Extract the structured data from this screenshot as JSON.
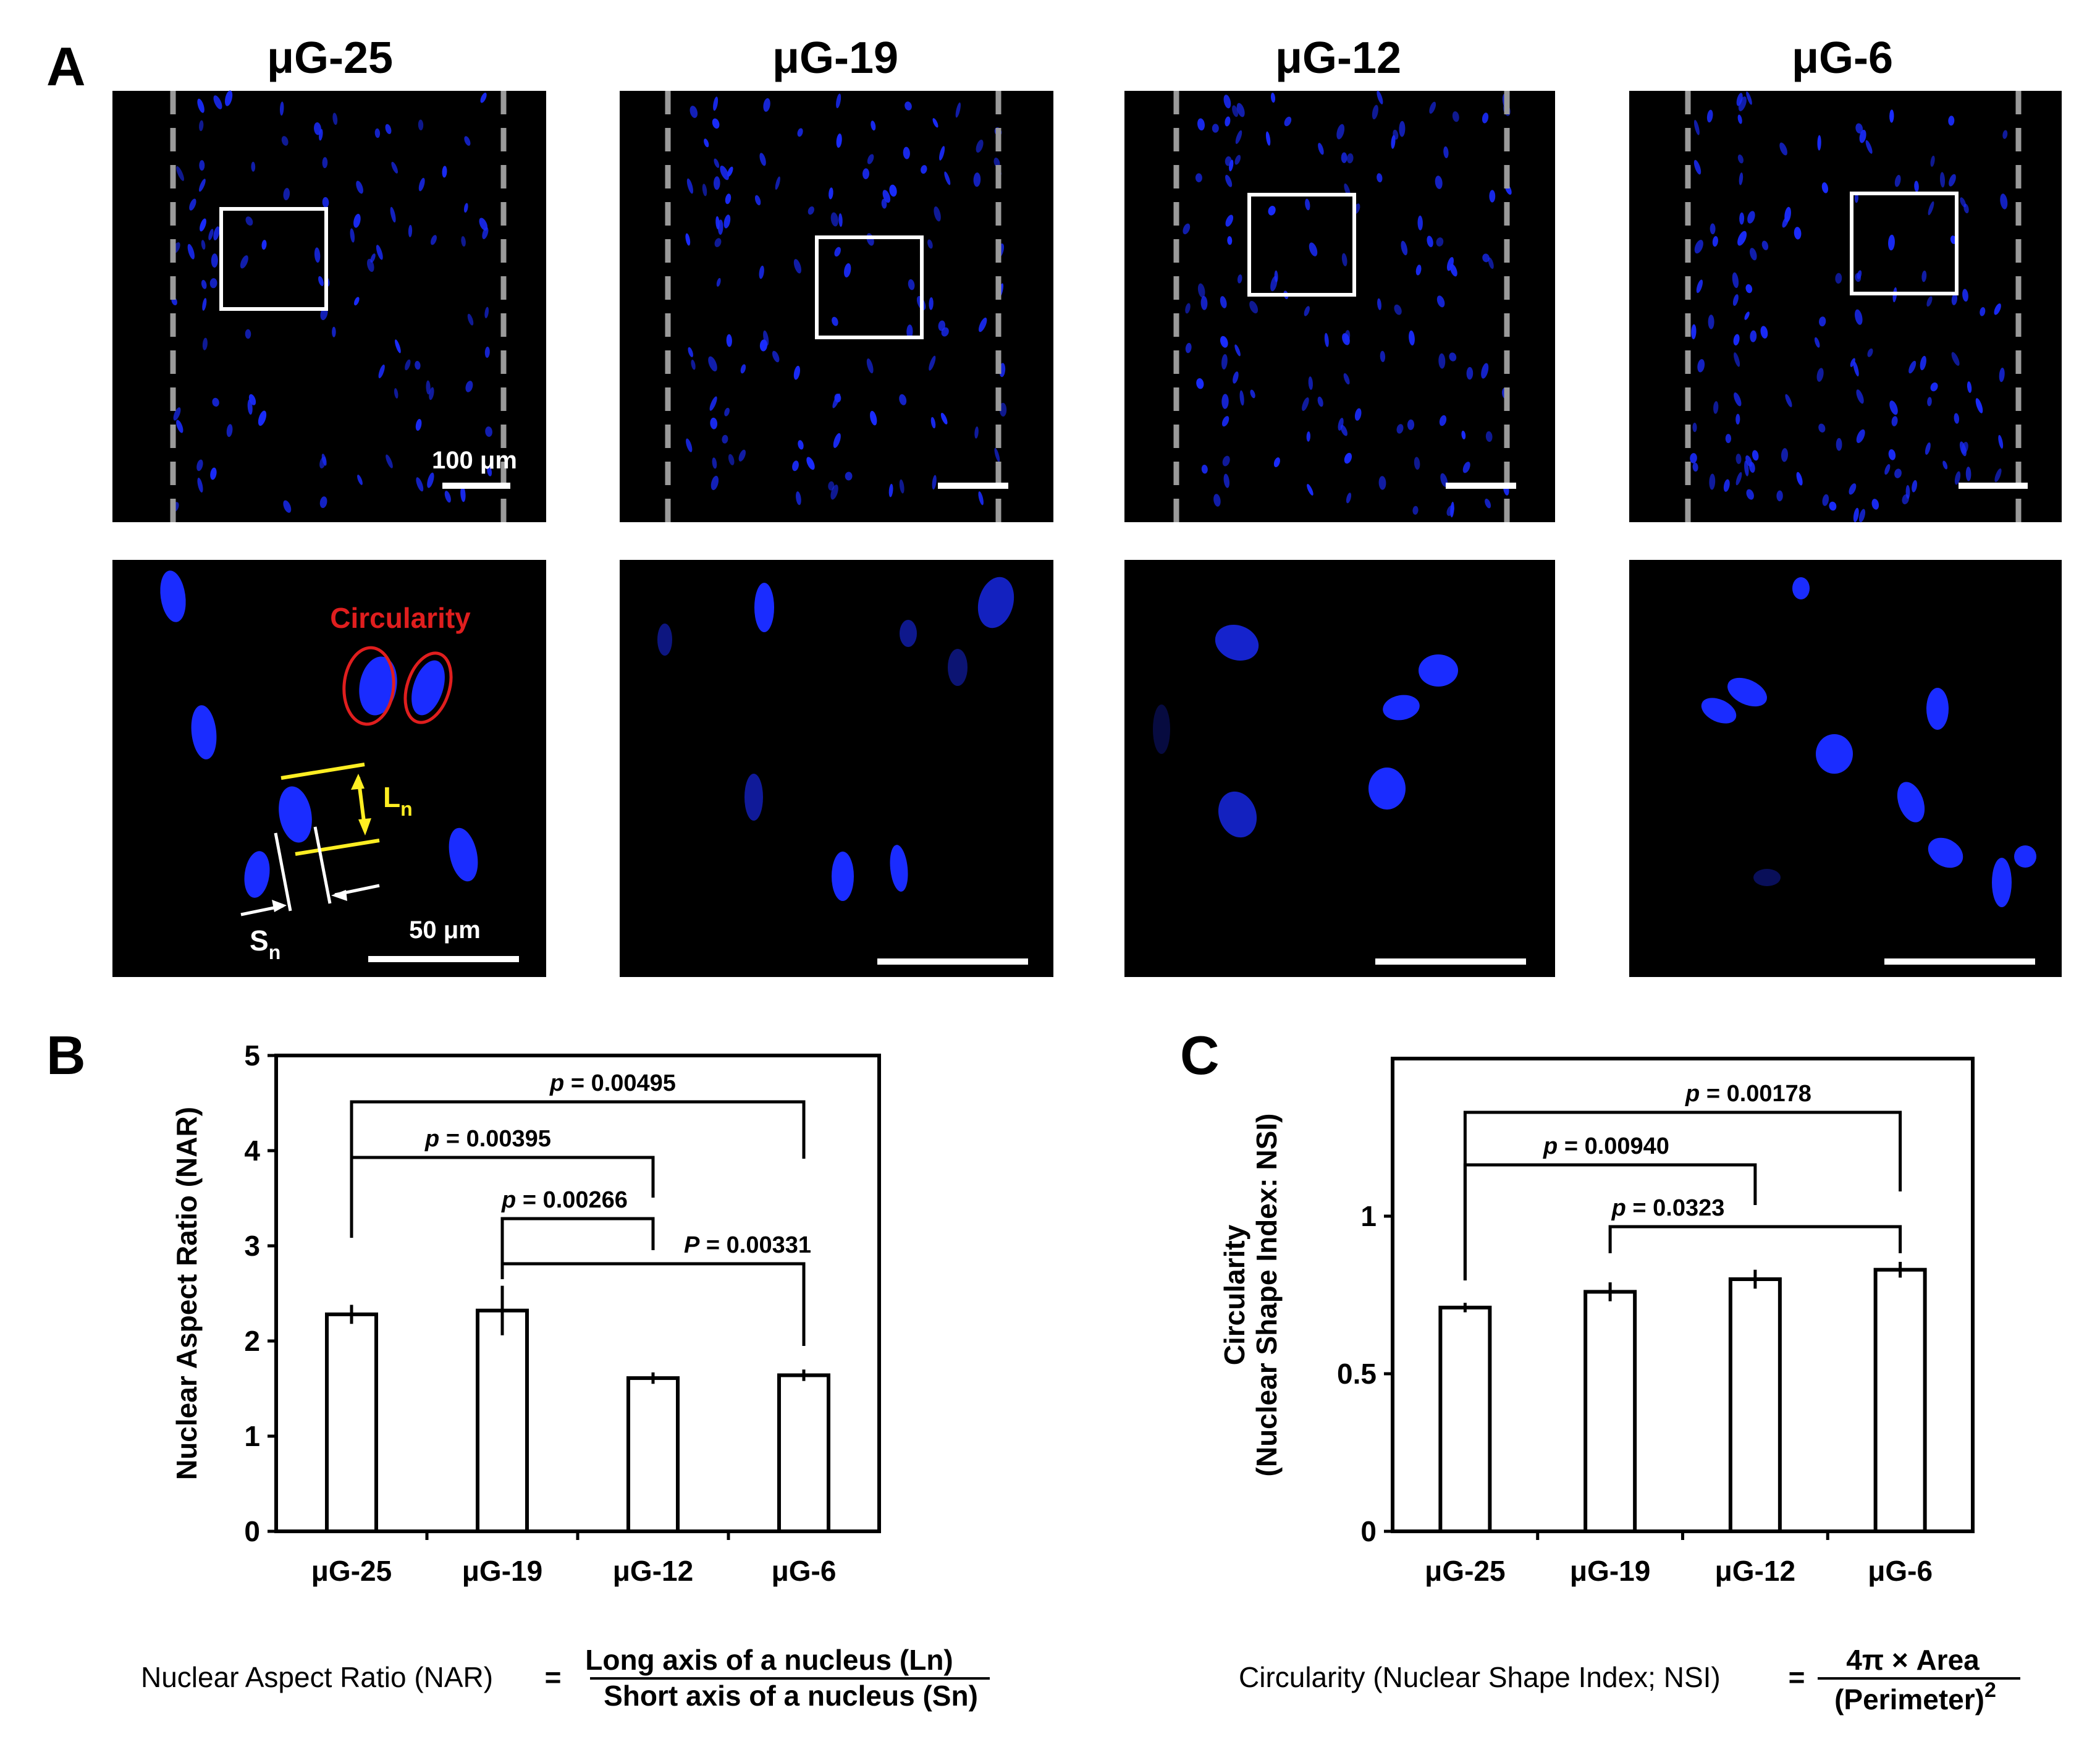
{
  "panel_a": {
    "label": "A",
    "columns": [
      "μG-25",
      "μG-19",
      "μG-12",
      "μG-6"
    ],
    "scale_top": "100 μm",
    "scale_bottom": "50 μm",
    "circularity_label": "Circularity",
    "ln_label": "L",
    "ln_sub": "n",
    "sn_label": "S",
    "sn_sub": "n",
    "colors": {
      "nucleus": "#1a2cff",
      "background": "#000000",
      "annot_red": "#e01e1e",
      "annot_yellow": "#ffee22"
    }
  },
  "panel_b": {
    "label": "B",
    "formula_lhs": "Nuclear Aspect Ratio (NAR)",
    "formula_eq": "=",
    "formula_num": "Long axis of a nucleus (Ln)",
    "formula_den": "Short axis of a nucleus (Sn)"
  },
  "panel_c": {
    "label": "C",
    "formula_lhs": "Circularity (Nuclear Shape Index; NSI)",
    "formula_eq": "=",
    "formula_num": "4π  ×  Area",
    "formula_den": "(Perimeter)",
    "formula_den_sup": "2"
  },
  "chart_data": [
    {
      "type": "bar",
      "categories": [
        "μG-25",
        "μG-19",
        "μG-12",
        "μG-6"
      ],
      "values": [
        2.28,
        2.32,
        1.61,
        1.64
      ],
      "errors": [
        0.1,
        0.26,
        0.06,
        0.06
      ],
      "ylabel": "Nuclear Aspect Ratio (NAR)",
      "ylim": [
        0,
        5
      ],
      "yticks": [
        "0",
        "1",
        "2",
        "3",
        "4",
        "5"
      ],
      "significance": [
        {
          "from": 0,
          "to": 3,
          "text": "p = 0.00495",
          "p_italic": "p",
          "p_rest": " = 0.00495"
        },
        {
          "from": 0,
          "to": 2,
          "text": "p = 0.00395",
          "p_italic": "p",
          "p_rest": " = 0.00395"
        },
        {
          "from": 1,
          "to": 2,
          "text": "p = 0.00266",
          "p_italic": "p",
          "p_rest": " = 0.00266"
        },
        {
          "from": 1,
          "to": 3,
          "text": "P = 0.00331",
          "p_italic": "P",
          "p_rest": " = 0.00331"
        }
      ]
    },
    {
      "type": "bar",
      "categories": [
        "μG-25",
        "μG-19",
        "μG-12",
        "μG-6"
      ],
      "values": [
        0.71,
        0.76,
        0.8,
        0.83
      ],
      "errors": [
        0.015,
        0.03,
        0.03,
        0.025
      ],
      "ylabel": "Circularity",
      "ylabel2": "(Nuclear Shape Index: NSI)",
      "ylim": [
        0,
        1.5
      ],
      "yticks": [
        "0",
        "0.5",
        "1"
      ],
      "significance": [
        {
          "from": 0,
          "to": 3,
          "text": "p = 0.00178",
          "p_italic": "p",
          "p_rest": " = 0.00178"
        },
        {
          "from": 0,
          "to": 2,
          "text": "p = 0.00940",
          "p_italic": "p",
          "p_rest": " = 0.00940"
        },
        {
          "from": 1,
          "to": 3,
          "text": "p = 0.0323",
          "p_italic": "p",
          "p_rest": " = 0.0323"
        }
      ]
    }
  ]
}
